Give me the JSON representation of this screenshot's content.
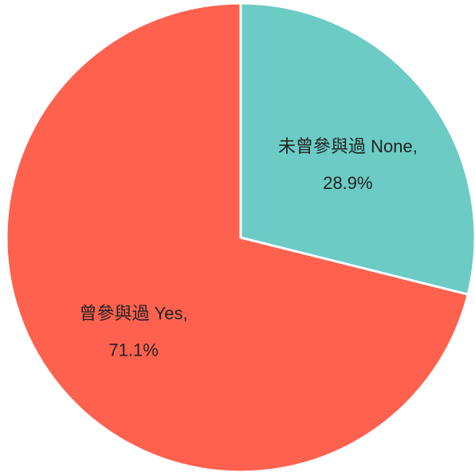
{
  "chart_data": {
    "type": "pie",
    "categories": [
      "未曾參與過 None,",
      "曾參與過 Yes,"
    ],
    "values": [
      28.9,
      71.1
    ],
    "value_labels": [
      "28.9%",
      "71.1%"
    ],
    "colors": [
      "#6ccbc5",
      "#ff614f"
    ]
  }
}
